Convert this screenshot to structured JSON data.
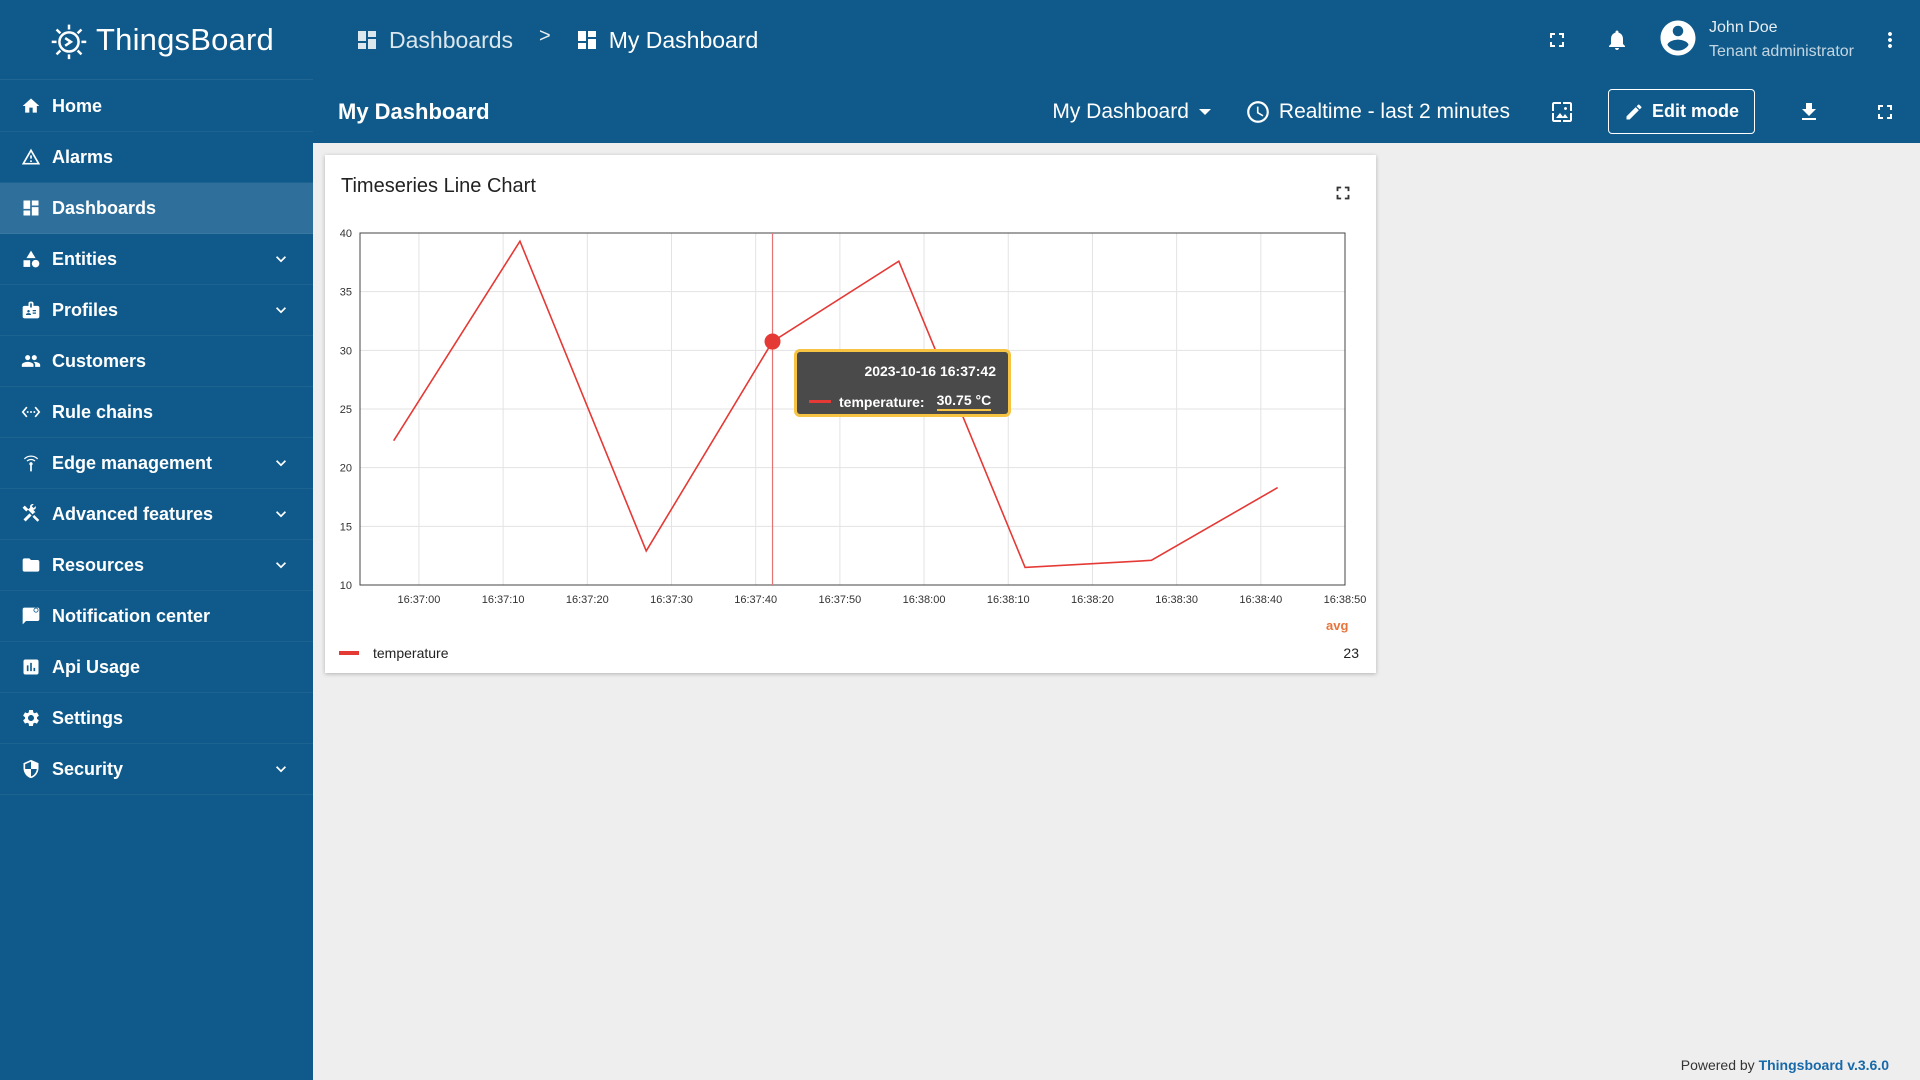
{
  "app": {
    "name": "ThingsBoard"
  },
  "colors": {
    "primary": "#0f5a8a",
    "active_item": "#2e6f9c",
    "series": "#e53935",
    "tooltip_border": "#f6c342",
    "legend_head": "#e8743b"
  },
  "sidebar": {
    "items": [
      {
        "label": "Home",
        "icon": "home-icon",
        "expandable": false,
        "active": false
      },
      {
        "label": "Alarms",
        "icon": "warning-icon",
        "expandable": false,
        "active": false
      },
      {
        "label": "Dashboards",
        "icon": "dashboard-icon",
        "expandable": false,
        "active": true
      },
      {
        "label": "Entities",
        "icon": "category-icon",
        "expandable": true,
        "active": false
      },
      {
        "label": "Profiles",
        "icon": "badge-icon",
        "expandable": true,
        "active": false
      },
      {
        "label": "Customers",
        "icon": "people-icon",
        "expandable": false,
        "active": false
      },
      {
        "label": "Rule chains",
        "icon": "settings-ethernet-icon",
        "expandable": false,
        "active": false
      },
      {
        "label": "Edge management",
        "icon": "router-icon",
        "expandable": true,
        "active": false
      },
      {
        "label": "Advanced features",
        "icon": "construction-icon",
        "expandable": true,
        "active": false
      },
      {
        "label": "Resources",
        "icon": "folder-icon",
        "expandable": true,
        "active": false
      },
      {
        "label": "Notification center",
        "icon": "mark-chat-icon",
        "expandable": false,
        "active": false
      },
      {
        "label": "Api Usage",
        "icon": "insert-chart-icon",
        "expandable": false,
        "active": false
      },
      {
        "label": "Settings",
        "icon": "gear-icon",
        "expandable": false,
        "active": false
      },
      {
        "label": "Security",
        "icon": "security-icon",
        "expandable": true,
        "active": false
      }
    ]
  },
  "header": {
    "breadcrumb": [
      "Dashboards",
      "My Dashboard"
    ],
    "breadcrumb_separator": ">",
    "user": {
      "name": "John Doe",
      "role": "Tenant administrator"
    }
  },
  "dashboard": {
    "title": "My Dashboard",
    "selector_value": "My Dashboard",
    "timewindow": "Realtime - last 2 minutes",
    "edit_label": "Edit mode"
  },
  "widget": {
    "title": "Timeseries Line Chart",
    "tooltip": {
      "time": "2023-10-16 16:37:42",
      "series": "temperature:",
      "value": "30.75 °C"
    },
    "legend": {
      "header": "avg",
      "series_name": "temperature",
      "avg": "23"
    }
  },
  "chart_data": {
    "type": "line",
    "title": "",
    "xlabel": "",
    "ylabel": "",
    "ylim": [
      10,
      40
    ],
    "xlim": [
      "16:36:53",
      "16:38:50"
    ],
    "grid": true,
    "legend_position": "bottom",
    "y_ticks": [
      "10",
      "15",
      "20",
      "25",
      "30",
      "35",
      "40"
    ],
    "x_ticks": [
      "16:37:00",
      "16:37:10",
      "16:37:20",
      "16:37:30",
      "16:37:40",
      "16:37:50",
      "16:38:00",
      "16:38:10",
      "16:38:20",
      "16:38:30",
      "16:38:40",
      "16:38:50"
    ],
    "series": [
      {
        "name": "temperature",
        "color": "#e53935",
        "x": [
          "16:36:57",
          "16:37:12",
          "16:37:27",
          "16:37:42",
          "16:37:57",
          "16:38:12",
          "16:38:27",
          "16:38:42"
        ],
        "y": [
          22.3,
          39.3,
          12.9,
          30.75,
          37.6,
          11.5,
          12.1,
          18.3
        ]
      }
    ],
    "highlight": {
      "x": "16:37:42",
      "y": 30.75
    }
  },
  "footer": {
    "prefix": "Powered by ",
    "link": "Thingsboard v.3.6.0"
  }
}
